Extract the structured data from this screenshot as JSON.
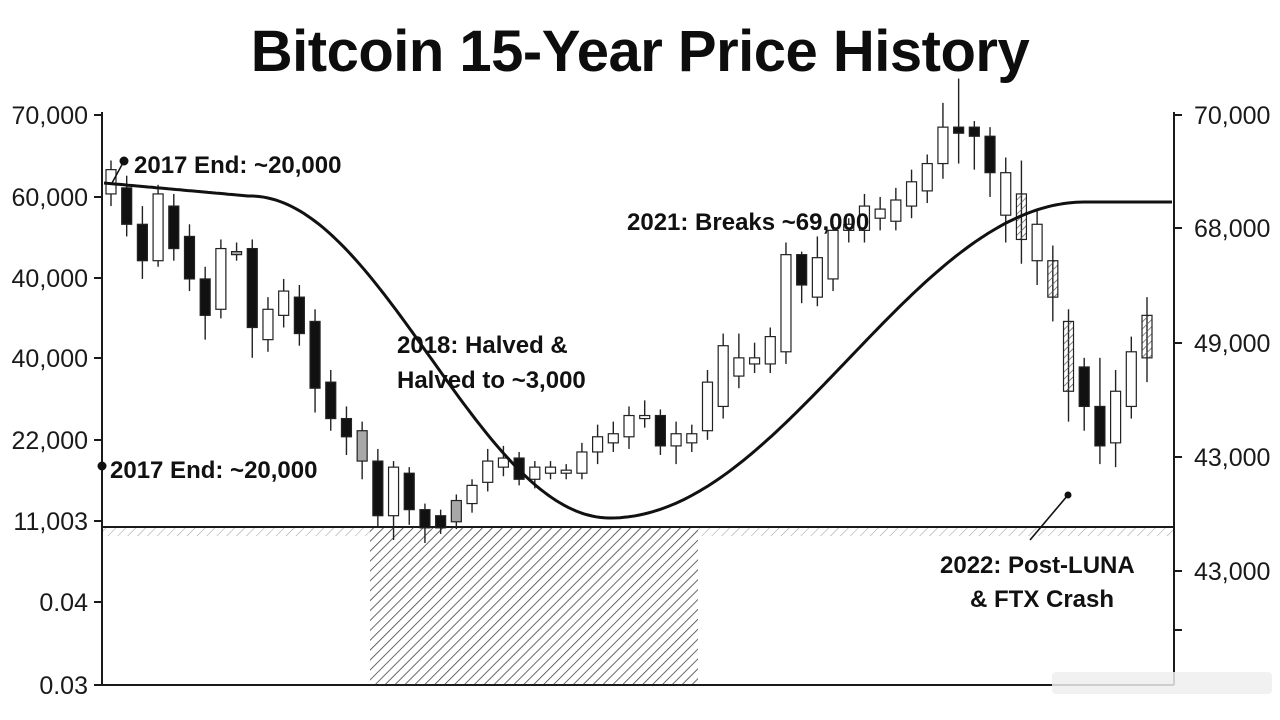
{
  "chart_data": {
    "type": "candlestick",
    "title": "Bitcoin 15-Year Price History",
    "left_axis_ticks": [
      "70,000",
      "60,000",
      "40,000",
      "40,000",
      "22,000",
      "11,003",
      "0.04",
      "0.03"
    ],
    "right_axis_ticks": [
      "70,000",
      "68,000",
      "49,000",
      "43,000",
      "43,000"
    ],
    "annotations": [
      {
        "label": "2017 End: ~20,000"
      },
      {
        "label": "2017 End: ~20,000"
      },
      {
        "label": "2018: Halved &"
      },
      {
        "label": "Halved to ~3,000"
      },
      {
        "label": "2021: Breaks ~69,000"
      },
      {
        "label": "2022: Post-LUNA"
      },
      {
        "label": "& FTX Crash"
      }
    ],
    "trend_curve": "smooth sine-like curve from ~61,000 (2017) down to ~10,000 (2018-2019 trough) and back up to ~67,000 (2021-2022)",
    "candles_approx_level": [
      {
        "o": 61000,
        "c": 57000,
        "h": 62500,
        "l": 55000,
        "fill": "white"
      },
      {
        "o": 58000,
        "c": 52000,
        "h": 60000,
        "l": 50000,
        "fill": "black"
      },
      {
        "o": 52000,
        "c": 46000,
        "h": 55000,
        "l": 43000,
        "fill": "black"
      },
      {
        "o": 46000,
        "c": 57000,
        "h": 58500,
        "l": 45000,
        "fill": "white"
      },
      {
        "o": 55000,
        "c": 48000,
        "h": 57000,
        "l": 46000,
        "fill": "black"
      },
      {
        "o": 50000,
        "c": 43000,
        "h": 52000,
        "l": 41000,
        "fill": "black"
      },
      {
        "o": 43000,
        "c": 37000,
        "h": 45000,
        "l": 33000,
        "fill": "black"
      },
      {
        "o": 38000,
        "c": 48000,
        "h": 49500,
        "l": 36500,
        "fill": "white"
      },
      {
        "o": 47500,
        "c": 47000,
        "h": 49000,
        "l": 46000,
        "fill": "gray"
      },
      {
        "o": 48000,
        "c": 35000,
        "h": 49500,
        "l": 30000,
        "fill": "black"
      },
      {
        "o": 33000,
        "c": 38000,
        "h": 40000,
        "l": 31000,
        "fill": "white"
      },
      {
        "o": 37000,
        "c": 41000,
        "h": 43000,
        "l": 35000,
        "fill": "white"
      },
      {
        "o": 40000,
        "c": 34000,
        "h": 42000,
        "l": 32000,
        "fill": "black"
      },
      {
        "o": 36000,
        "c": 25000,
        "h": 38000,
        "l": 21000,
        "fill": "black"
      },
      {
        "o": 26000,
        "c": 20000,
        "h": 28000,
        "l": 18000,
        "fill": "black"
      },
      {
        "o": 20000,
        "c": 17000,
        "h": 22000,
        "l": 14000,
        "fill": "black"
      },
      {
        "o": 18000,
        "c": 13000,
        "h": 19500,
        "l": 10000,
        "fill": "gray"
      },
      {
        "o": 13000,
        "c": 4000,
        "h": 15000,
        "l": 2000,
        "fill": "black"
      },
      {
        "o": 4000,
        "c": 12000,
        "h": 13000,
        "l": 0,
        "fill": "white"
      },
      {
        "o": 11000,
        "c": 5000,
        "h": 12000,
        "l": 2500,
        "fill": "black"
      },
      {
        "o": 5000,
        "c": 2000,
        "h": 6000,
        "l": -500,
        "fill": "black"
      },
      {
        "o": 2000,
        "c": 4000,
        "h": 5000,
        "l": 1000,
        "fill": "black"
      },
      {
        "o": 3000,
        "c": 6500,
        "h": 7500,
        "l": 1800,
        "fill": "gray"
      },
      {
        "o": 6000,
        "c": 9000,
        "h": 10000,
        "l": 4500,
        "fill": "white"
      },
      {
        "o": 9500,
        "c": 13000,
        "h": 15000,
        "l": 8000,
        "fill": "white"
      },
      {
        "o": 12000,
        "c": 13500,
        "h": 15500,
        "l": 10500,
        "fill": "white"
      },
      {
        "o": 13500,
        "c": 10000,
        "h": 14500,
        "l": 9000,
        "fill": "black"
      },
      {
        "o": 10000,
        "c": 12000,
        "h": 13000,
        "l": 8500,
        "fill": "white"
      },
      {
        "o": 11000,
        "c": 12000,
        "h": 13000,
        "l": 10000,
        "fill": "white"
      },
      {
        "o": 11000,
        "c": 11500,
        "h": 12500,
        "l": 10000,
        "fill": "white"
      },
      {
        "o": 11000,
        "c": 14500,
        "h": 16000,
        "l": 10000,
        "fill": "white"
      },
      {
        "o": 14500,
        "c": 17000,
        "h": 19000,
        "l": 12500,
        "fill": "white"
      },
      {
        "o": 16000,
        "c": 17500,
        "h": 19500,
        "l": 14500,
        "fill": "white"
      },
      {
        "o": 17000,
        "c": 20500,
        "h": 22000,
        "l": 15000,
        "fill": "white"
      },
      {
        "o": 20500,
        "c": 20000,
        "h": 23000,
        "l": 18500,
        "fill": "white"
      },
      {
        "o": 20500,
        "c": 15500,
        "h": 21500,
        "l": 14000,
        "fill": "black"
      },
      {
        "o": 15500,
        "c": 17500,
        "h": 19500,
        "l": 12500,
        "fill": "white"
      },
      {
        "o": 16000,
        "c": 17500,
        "h": 19000,
        "l": 14500,
        "fill": "white"
      },
      {
        "o": 18000,
        "c": 26000,
        "h": 28000,
        "l": 16500,
        "fill": "white"
      },
      {
        "o": 22000,
        "c": 32000,
        "h": 34000,
        "l": 20000,
        "fill": "white"
      },
      {
        "o": 27000,
        "c": 30000,
        "h": 34000,
        "l": 25000,
        "fill": "white"
      },
      {
        "o": 29000,
        "c": 30000,
        "h": 32500,
        "l": 27500,
        "fill": "white"
      },
      {
        "o": 29000,
        "c": 33500,
        "h": 35000,
        "l": 27500,
        "fill": "white"
      },
      {
        "o": 31000,
        "c": 47000,
        "h": 49000,
        "l": 29000,
        "fill": "white"
      },
      {
        "o": 47000,
        "c": 42000,
        "h": 47500,
        "l": 39000,
        "fill": "black"
      },
      {
        "o": 40000,
        "c": 46500,
        "h": 50000,
        "l": 38500,
        "fill": "white"
      },
      {
        "o": 43000,
        "c": 51000,
        "h": 52000,
        "l": 41000,
        "fill": "white"
      },
      {
        "o": 51000,
        "c": 52000,
        "h": 53000,
        "l": 49000,
        "fill": "white"
      },
      {
        "o": 51000,
        "c": 55000,
        "h": 57000,
        "l": 49000,
        "fill": "white"
      },
      {
        "o": 53000,
        "c": 54500,
        "h": 56500,
        "l": 51000,
        "fill": "white"
      },
      {
        "o": 52500,
        "c": 56000,
        "h": 58000,
        "l": 51000,
        "fill": "white"
      },
      {
        "o": 55000,
        "c": 59000,
        "h": 61000,
        "l": 53000,
        "fill": "white"
      },
      {
        "o": 57500,
        "c": 62000,
        "h": 63500,
        "l": 55500,
        "fill": "white"
      },
      {
        "o": 62000,
        "c": 68000,
        "h": 72000,
        "l": 59500,
        "fill": "white"
      },
      {
        "o": 68000,
        "c": 67000,
        "h": 76000,
        "l": 62000,
        "fill": "black"
      },
      {
        "o": 68000,
        "c": 66500,
        "h": 69000,
        "l": 61000,
        "fill": "black"
      },
      {
        "o": 66500,
        "c": 60500,
        "h": 68000,
        "l": 56500,
        "fill": "black"
      },
      {
        "o": 60500,
        "c": 53500,
        "h": 63000,
        "l": 49000,
        "fill": "white"
      },
      {
        "o": 57000,
        "c": 49500,
        "h": 62500,
        "l": 45500,
        "fill": "hatched"
      },
      {
        "o": 52000,
        "c": 46000,
        "h": 54500,
        "l": 42000,
        "fill": "white"
      },
      {
        "o": 46000,
        "c": 40000,
        "h": 48500,
        "l": 36000,
        "fill": "hatched"
      },
      {
        "o": 36000,
        "c": 24500,
        "h": 38000,
        "l": 19500,
        "fill": "hatched"
      },
      {
        "o": 28500,
        "c": 22000,
        "h": 30000,
        "l": 18000,
        "fill": "black"
      },
      {
        "o": 22000,
        "c": 15500,
        "h": 30000,
        "l": 12500,
        "fill": "black"
      },
      {
        "o": 16000,
        "c": 24500,
        "h": 28000,
        "l": 12000,
        "fill": "white"
      },
      {
        "o": 22000,
        "c": 31000,
        "h": 33500,
        "l": 20000,
        "fill": "white"
      },
      {
        "o": 30000,
        "c": 37000,
        "h": 40000,
        "l": 26000,
        "fill": "hatched"
      }
    ],
    "reference_line": "11,003"
  },
  "watermark": "...."
}
